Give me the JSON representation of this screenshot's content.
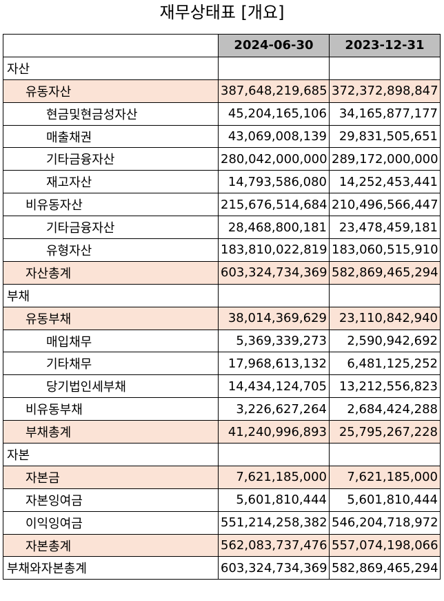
{
  "title": "재무상태표 [개요]",
  "columns": [
    "",
    "2024-06-30",
    "2023-12-31"
  ],
  "rows": [
    {
      "label": "자산",
      "indent": 0,
      "highlight": false,
      "v1": "",
      "v2": ""
    },
    {
      "label": "유동자산",
      "indent": 1,
      "highlight": true,
      "v1": "387,648,219,685",
      "v2": "372,372,898,847"
    },
    {
      "label": "현금및현금성자산",
      "indent": 2,
      "highlight": false,
      "v1": "45,204,165,106",
      "v2": "34,165,877,177"
    },
    {
      "label": "매출채권",
      "indent": 2,
      "highlight": false,
      "v1": "43,069,008,139",
      "v2": "29,831,505,651"
    },
    {
      "label": "기타금융자산",
      "indent": 2,
      "highlight": false,
      "v1": "280,042,000,000",
      "v2": "289,172,000,000"
    },
    {
      "label": "재고자산",
      "indent": 2,
      "highlight": false,
      "v1": "14,793,586,080",
      "v2": "14,252,453,441"
    },
    {
      "label": "비유동자산",
      "indent": 1,
      "highlight": false,
      "v1": "215,676,514,684",
      "v2": "210,496,566,447"
    },
    {
      "label": "기타금융자산",
      "indent": 2,
      "highlight": false,
      "v1": "28,468,800,181",
      "v2": "23,478,459,181"
    },
    {
      "label": "유형자산",
      "indent": 2,
      "highlight": false,
      "v1": "183,810,022,819",
      "v2": "183,060,515,910"
    },
    {
      "label": "자산총계",
      "indent": 1,
      "highlight": true,
      "v1": "603,324,734,369",
      "v2": "582,869,465,294"
    },
    {
      "label": "부채",
      "indent": 0,
      "highlight": false,
      "v1": "",
      "v2": ""
    },
    {
      "label": "유동부채",
      "indent": 1,
      "highlight": true,
      "v1": "38,014,369,629",
      "v2": "23,110,842,940"
    },
    {
      "label": "매입채무",
      "indent": 2,
      "highlight": false,
      "v1": "5,369,339,273",
      "v2": "2,590,942,692"
    },
    {
      "label": "기타채무",
      "indent": 2,
      "highlight": false,
      "v1": "17,968,613,132",
      "v2": "6,481,125,252"
    },
    {
      "label": "당기법인세부채",
      "indent": 2,
      "highlight": false,
      "v1": "14,434,124,705",
      "v2": "13,212,556,823"
    },
    {
      "label": "비유동부채",
      "indent": 1,
      "highlight": false,
      "v1": "3,226,627,264",
      "v2": "2,684,424,288"
    },
    {
      "label": "부채총계",
      "indent": 1,
      "highlight": true,
      "v1": "41,240,996,893",
      "v2": "25,795,267,228"
    },
    {
      "label": "자본",
      "indent": 0,
      "highlight": false,
      "v1": "",
      "v2": ""
    },
    {
      "label": "자본금",
      "indent": 1,
      "highlight": true,
      "v1": "7,621,185,000",
      "v2": "7,621,185,000"
    },
    {
      "label": "자본잉여금",
      "indent": 1,
      "highlight": false,
      "v1": "5,601,810,444",
      "v2": "5,601,810,444"
    },
    {
      "label": "이익잉여금",
      "indent": 1,
      "highlight": false,
      "v1": "551,214,258,382",
      "v2": "546,204,718,972"
    },
    {
      "label": "자본총계",
      "indent": 1,
      "highlight": true,
      "v1": "562,083,737,476",
      "v2": "557,074,198,066"
    },
    {
      "label": "부채와자본총계",
      "indent": 0,
      "highlight": false,
      "v1": "603,324,734,369",
      "v2": "582,869,465,294"
    }
  ],
  "colors": {
    "header_bg": "#bfbfbf",
    "highlight_bg": "#fbe3d6",
    "border": "#000000"
  }
}
